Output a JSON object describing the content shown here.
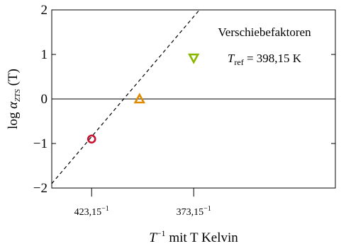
{
  "chart_data": {
    "type": "scatter",
    "title": "",
    "annotation": {
      "line1": "Verschiebefaktoren",
      "tref_symbol": "T",
      "tref_sub": "ref",
      "tref_value": " = 398,15 K"
    },
    "ylabel": {
      "prefix": "log ",
      "alpha": "α",
      "sub": "ZTS",
      "suffix": " (T)"
    },
    "xlabel": {
      "symbol": "T",
      "sup": "−1",
      "rest": "  mit T Kelvin"
    },
    "ylim": [
      -2,
      2
    ],
    "yticks": [
      "2",
      "1",
      "0",
      "−1",
      "−2"
    ],
    "ytick_values": [
      2,
      1,
      0,
      -1,
      -2
    ],
    "xtick_labels": [
      {
        "value": 0.0023629,
        "base": "423,15",
        "sup": "−1"
      },
      {
        "value": 0.0026798,
        "base": "373,15",
        "sup": "−1"
      }
    ],
    "xlim": [
      0.0022391,
      0.0031196
    ],
    "reference_line_y": 0,
    "fit_line": {
      "style": "dashed",
      "from": [
        0.0022391,
        -1.9
      ],
      "to": [
        0.0026976,
        2.0
      ]
    },
    "points": [
      {
        "name": "423,15 K",
        "x": 0.0023629,
        "y": -0.9,
        "marker": "circle",
        "color": "#c8102e"
      },
      {
        "name": "398,15 K",
        "x": 0.0025116,
        "y": 0.0,
        "marker": "triangle-up",
        "color": "#e08a00"
      },
      {
        "name": "373,15 K",
        "x": 0.0026798,
        "y": 0.92,
        "marker": "triangle-down",
        "color": "#8ab800"
      }
    ],
    "grid": false
  }
}
